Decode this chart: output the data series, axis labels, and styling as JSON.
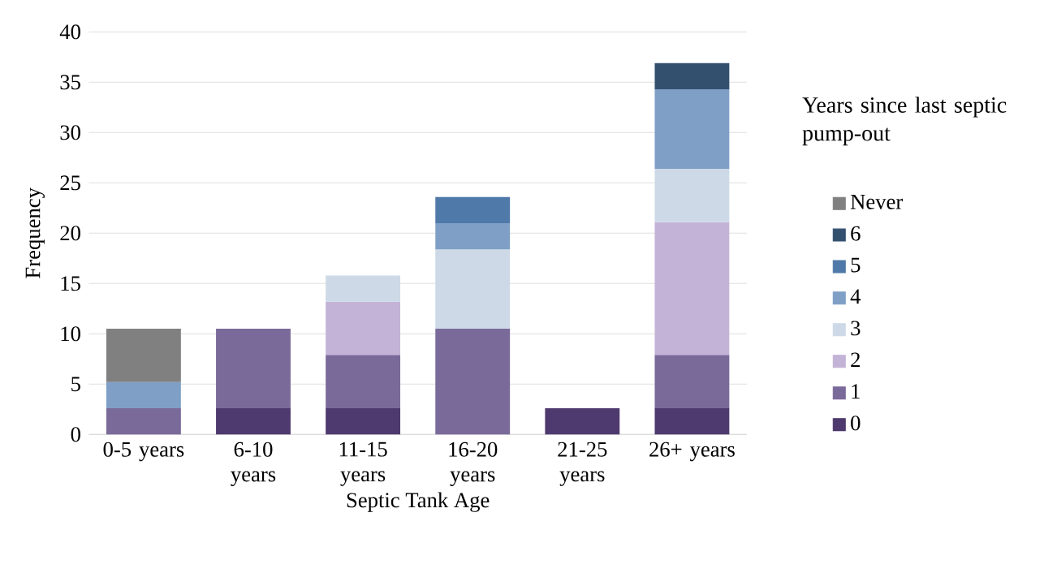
{
  "chart_data": {
    "type": "bar",
    "stacked": true,
    "xlabel": "Septic Tank Age",
    "ylabel": "Frequency",
    "legend_title": "Years since last septic pump-out",
    "legend": "right",
    "grid": "y",
    "categories": [
      "0-5 years",
      "6-10 years",
      "11-15 years",
      "16-20 years",
      "21-25 years",
      "26+ years"
    ],
    "ylim": [
      0,
      40
    ],
    "yticks": [
      0,
      5,
      10,
      15,
      20,
      25,
      30,
      35,
      40
    ],
    "series": [
      {
        "name": "0",
        "color": "#4e3a6e",
        "values": [
          null,
          2.6,
          2.6,
          null,
          2.6,
          2.6
        ]
      },
      {
        "name": "1",
        "color": "#7a6a9a",
        "values": [
          2.6,
          7.9,
          5.3,
          10.5,
          null,
          5.3
        ]
      },
      {
        "name": "2",
        "color": "#c3b3d6",
        "values": [
          null,
          null,
          5.3,
          null,
          null,
          13.2
        ]
      },
      {
        "name": "3",
        "color": "#cdd9e6",
        "values": [
          null,
          null,
          2.6,
          7.9,
          null,
          5.3
        ]
      },
      {
        "name": "4",
        "color": "#7f9fc6",
        "values": [
          2.6,
          null,
          null,
          2.6,
          null,
          7.9
        ]
      },
      {
        "name": "5",
        "color": "#4f79a8",
        "values": [
          null,
          null,
          null,
          2.6,
          null,
          null
        ]
      },
      {
        "name": "6",
        "color": "#34506f",
        "values": [
          null,
          null,
          null,
          null,
          null,
          2.6
        ]
      },
      {
        "name": "Never",
        "color": "#808080",
        "values": [
          5.3,
          null,
          null,
          null,
          null,
          null
        ]
      }
    ]
  }
}
